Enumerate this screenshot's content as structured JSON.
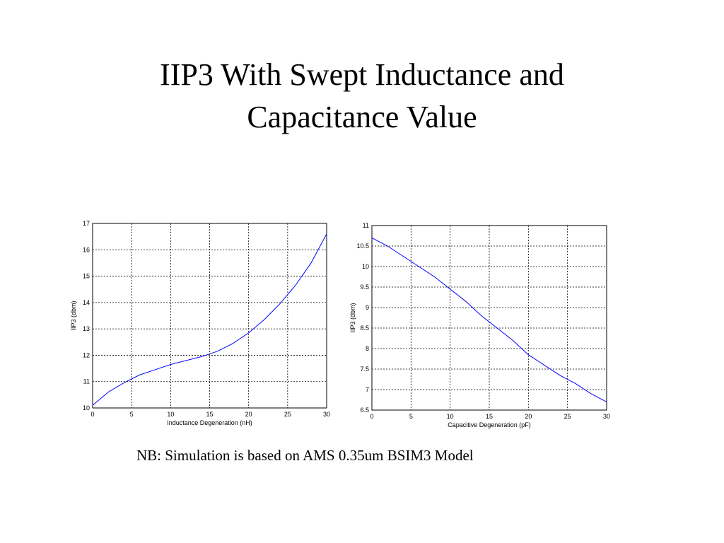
{
  "title": "IIP3 With Swept Inductance and Capacitance Value",
  "note": "NB: Simulation is based on  AMS 0.35um BSIM3 Model",
  "chart_data": [
    {
      "type": "line",
      "xlabel": "Inductance Degeneration (nH)",
      "ylabel": "IIP3 (dbm)",
      "x": [
        0,
        2,
        4,
        6,
        8,
        10,
        12,
        14,
        16,
        18,
        20,
        22,
        24,
        26,
        28,
        30
      ],
      "series": [
        {
          "color": "#0000ff",
          "values": [
            10.1,
            10.6,
            10.95,
            11.25,
            11.45,
            11.65,
            11.8,
            11.95,
            12.15,
            12.45,
            12.85,
            13.35,
            13.95,
            14.65,
            15.5,
            16.6
          ]
        }
      ],
      "xlim": [
        0,
        30
      ],
      "xticks": [
        0,
        5,
        10,
        15,
        20,
        25,
        30
      ],
      "ylim": [
        10,
        17
      ],
      "yticks": [
        10,
        11,
        12,
        13,
        14,
        15,
        16,
        17
      ],
      "grid": true
    },
    {
      "type": "line",
      "xlabel": "Capacitive Degeneration (pF)",
      "ylabel": "IIP3 (dbm)",
      "x": [
        0,
        2,
        4,
        6,
        8,
        10,
        12,
        14,
        16,
        18,
        20,
        22,
        24,
        26,
        28,
        30
      ],
      "series": [
        {
          "color": "#0000ff",
          "values": [
            10.7,
            10.5,
            10.25,
            10.0,
            9.75,
            9.45,
            9.15,
            8.8,
            8.5,
            8.2,
            7.85,
            7.6,
            7.35,
            7.15,
            6.9,
            6.7
          ]
        }
      ],
      "xlim": [
        0,
        30
      ],
      "xticks": [
        0,
        5,
        10,
        15,
        20,
        25,
        30
      ],
      "ylim": [
        6.5,
        11
      ],
      "yticks": [
        6.5,
        7,
        7.5,
        8,
        8.5,
        9,
        9.5,
        10,
        10.5,
        11
      ],
      "grid": true
    }
  ]
}
